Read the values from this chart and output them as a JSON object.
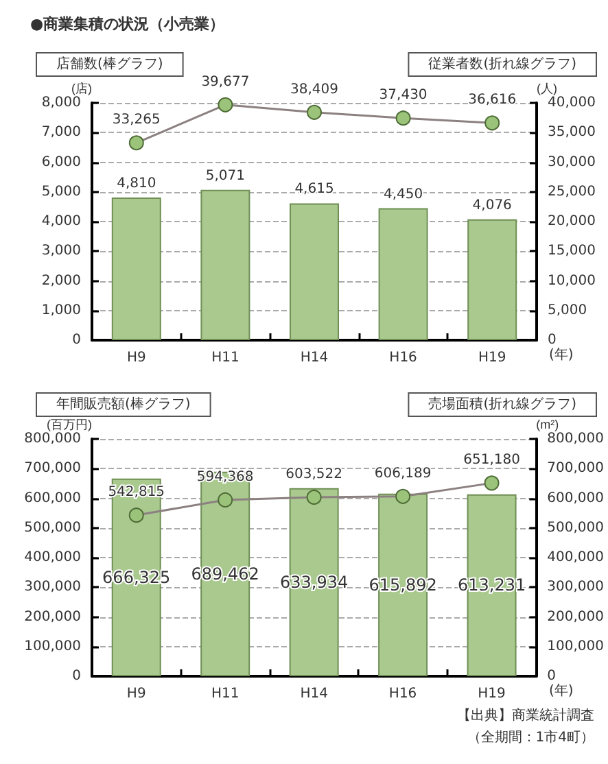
{
  "chart_data": [
    {
      "type": "bar",
      "title": "●商業集積の状況（小売業）",
      "ylabel": "店舗数(棒グラフ)",
      "y2label": "従業者数(折れ線グラフ)",
      "categories": [
        "H9",
        "H11",
        "H14",
        "H16",
        "H19"
      ],
      "series": [
        {
          "color": "#a9c98f",
          "values": [
            4810,
            5071,
            4615,
            4450,
            4076
          ],
          "value_labels": [
            "4,810",
            "5,071",
            "4,615",
            "4,450",
            "4,076"
          ]
        },
        {
          "type": "line",
          "axis": "y2",
          "color": "#8c8080",
          "values": [
            33265,
            39677,
            38409,
            37430,
            36616
          ],
          "value_labels": [
            "33,265",
            "39,677",
            "38,409",
            "37,430",
            "36,616"
          ]
        }
      ],
      "ylim": [
        0,
        8000
      ],
      "yticks": [
        0,
        {
          "value": 1000,
          "label": "1,000"
        },
        {
          "value": 2000,
          "label": "2,000"
        },
        {
          "value": 3000,
          "label": "3,000"
        },
        {
          "value": 4000,
          "label": "4,000"
        },
        {
          "value": 5000,
          "label": "5,000"
        },
        {
          "value": 6000,
          "label": "6,000"
        },
        {
          "value": 7000,
          "label": "7,000"
        },
        {
          "value": 8000,
          "label": "8,000"
        }
      ],
      "y2lim": [
        0,
        40000
      ],
      "y2ticks": [
        0,
        {
          "value": 5000,
          "label": "5,000"
        },
        {
          "value": 10000,
          "label": "10,000"
        },
        {
          "value": 15000,
          "label": "15,000"
        },
        {
          "value": 20000,
          "label": "20,000"
        },
        {
          "value": 25000,
          "label": "25,000"
        },
        {
          "value": 30000,
          "label": "30,000"
        },
        {
          "value": 35000,
          "label": "35,000"
        },
        {
          "value": 40000,
          "label": "40,000"
        }
      ],
      "grid": "y",
      "marker": "circle",
      "line_style": "solid",
      "annotations": [
        "(店)",
        "(人)",
        "(年)"
      ]
    },
    {
      "type": "bar",
      "ylabel": "年間販売額(棒グラフ)",
      "y2label": "売場面積(折れ線グラフ)",
      "categories": [
        "H9",
        "H11",
        "H14",
        "H16",
        "H19"
      ],
      "series": [
        {
          "color": "#a9c98f",
          "values": [
            666325,
            689462,
            633934,
            615892,
            613231
          ],
          "value_labels": [
            "666,325",
            "689,462",
            "633,934",
            "615,892",
            "613,231"
          ]
        },
        {
          "type": "line",
          "axis": "y2",
          "color": "#8c8080",
          "values": [
            542815,
            594368,
            603522,
            606189,
            651180
          ],
          "value_labels": [
            "542,815",
            "594,368",
            "603,522",
            "606,189",
            "651,180"
          ]
        }
      ],
      "ylim": [
        0,
        800000
      ],
      "yticks": [
        0,
        {
          "value": 100000,
          "label": "100,000"
        },
        {
          "value": 200000,
          "label": "200,000"
        },
        {
          "value": 300000,
          "label": "300,000"
        },
        {
          "value": 400000,
          "label": "400,000"
        },
        {
          "value": 500000,
          "label": "500,000"
        },
        {
          "value": 600000,
          "label": "600,000"
        },
        {
          "value": 700000,
          "label": "700,000"
        },
        {
          "value": 800000,
          "label": "800,000"
        }
      ],
      "y2lim": [
        0,
        800000
      ],
      "y2ticks": [
        0,
        {
          "value": 100000,
          "label": "100,000"
        },
        {
          "value": 200000,
          "label": "200,000"
        },
        {
          "value": 300000,
          "label": "300,000"
        },
        {
          "value": 400000,
          "label": "400,000"
        },
        {
          "value": 500000,
          "label": "500,000"
        },
        {
          "value": 600000,
          "label": "600,000"
        },
        {
          "value": 700000,
          "label": "700,000"
        },
        {
          "value": 800000,
          "label": "800,000"
        }
      ],
      "grid": "y",
      "marker": "circle",
      "line_style": "solid",
      "annotations": [
        "(百万円)",
        "(m²)",
        "(年)",
        "【出典】商業統計調査",
        "（全期間：1市4町）"
      ]
    }
  ]
}
